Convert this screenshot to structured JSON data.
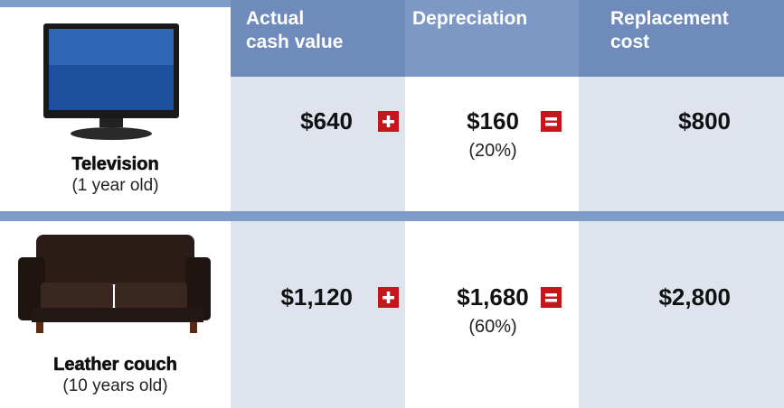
{
  "header": {
    "columns": [
      [
        "Actual",
        "cash value"
      ],
      [
        "Depreciation"
      ],
      [
        "Replacement",
        "cost"
      ]
    ]
  },
  "rows": [
    {
      "item": "Television",
      "age": "(1 year old)",
      "actual_cash_value": "$640",
      "depreciation": "$160",
      "depreciation_pct": "(20%)",
      "replacement_cost": "$800"
    },
    {
      "item": "Leather couch",
      "age": "(10 years old)",
      "actual_cash_value": "$1,120",
      "depreciation": "$1,680",
      "depreciation_pct": "(60%)",
      "replacement_cost": "$2,800"
    }
  ]
}
